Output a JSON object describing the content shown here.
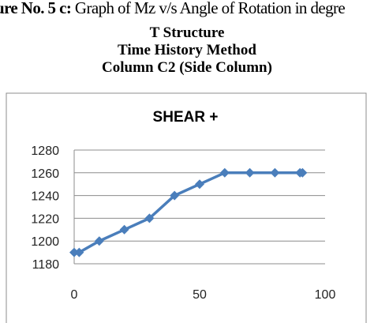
{
  "caption": {
    "label": "ure No. 5 c:",
    "text": " Graph of Mz v/s Angle of Rotation in degre"
  },
  "headings": {
    "line1": "T Structure",
    "line2": "Time History Method",
    "line3": "Column C2 (Side Column)"
  },
  "chart_data": {
    "type": "line",
    "title": "SHEAR +",
    "xlabel": "",
    "ylabel": "",
    "xlim": [
      0,
      100
    ],
    "ylim": [
      1180,
      1280
    ],
    "x_ticks": [
      "0",
      "50",
      "100"
    ],
    "y_ticks": [
      "1180",
      "1200",
      "1220",
      "1240",
      "1260",
      "1280"
    ],
    "grid": true,
    "legend": "none",
    "series": [
      {
        "color": "#4a7ebb",
        "points": [
          [
            0,
            1190
          ],
          [
            2,
            1190
          ],
          [
            10,
            1200
          ],
          [
            20,
            1210
          ],
          [
            30,
            1220
          ],
          [
            40,
            1240
          ],
          [
            50,
            1250
          ],
          [
            60,
            1260
          ],
          [
            70,
            1260
          ],
          [
            80,
            1260
          ],
          [
            90,
            1260
          ],
          [
            91,
            1260
          ]
        ]
      }
    ]
  }
}
